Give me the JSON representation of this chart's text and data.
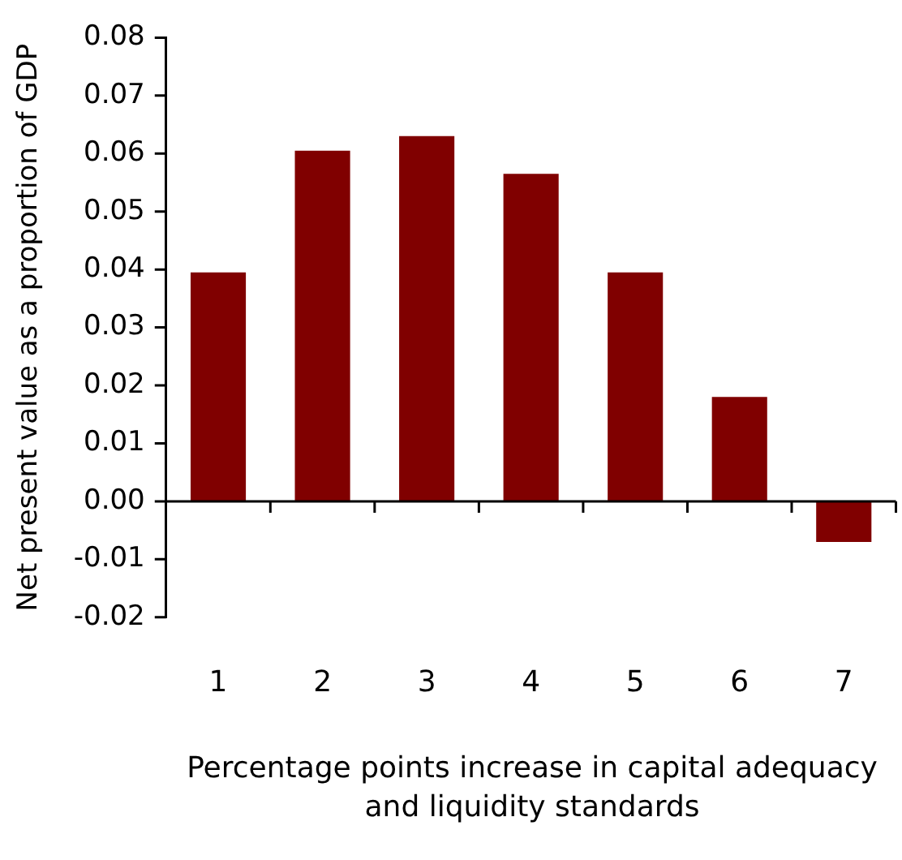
{
  "chart_data": {
    "type": "bar",
    "xlabel": "Percentage points increase in capital adequacy and liquidity standards",
    "ylabel": "Net present value as a proportion of GDP",
    "categories": [
      "1",
      "2",
      "3",
      "4",
      "5",
      "6",
      "7"
    ],
    "values": [
      0.0395,
      0.0605,
      0.063,
      0.0565,
      0.0395,
      0.018,
      -0.007
    ],
    "color": "#800000",
    "ylim": [
      -0.02,
      0.08
    ],
    "yticks": [
      -0.02,
      -0.01,
      {
        "value": 0,
        "label": "0.00"
      },
      0.01,
      0.02,
      0.03,
      0.04,
      0.05,
      0.06,
      0.07,
      0.08
    ],
    "legend": false
  }
}
